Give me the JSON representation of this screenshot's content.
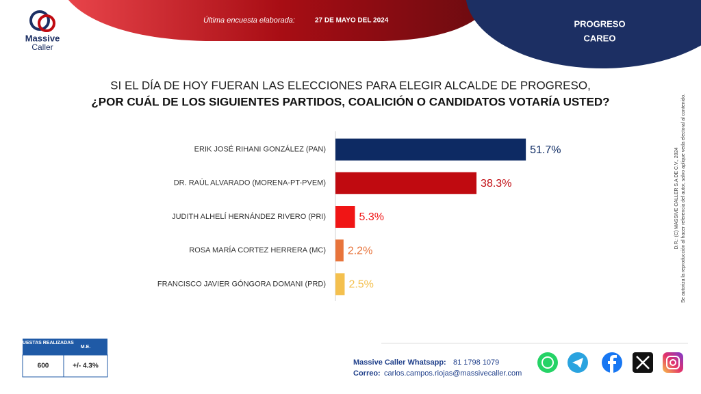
{
  "header": {
    "logo_top": "Massive",
    "logo_bottom": "Caller",
    "survey_label": "Última encuesta elaborada:",
    "survey_date": "27 DE MAYO DEL 2024",
    "place": "PROGRESO",
    "mode": "CAREO"
  },
  "chart_data": {
    "type": "bar",
    "orientation": "horizontal",
    "title": "SI EL DÍA DE HOY FUERAN LAS ELECCIONES PARA ELEGIR ALCALDE DE PROGRESO,",
    "subtitle": "¿POR CUÁL DE LOS SIGUIENTES PARTIDOS, COALICIÓN O CANDIDATOS VOTARÍA USTED?",
    "categories": [
      "ERIK JOSÉ RIHANI GONZÁLEZ (PAN)",
      "DR. RAÚL ALVARADO (MORENA-PT-PVEM)",
      "JUDITH ALHELÍ HERNÁNDEZ RIVERO (PRI)",
      "ROSA MARÍA CORTEZ HERRERA (MC)",
      "FRANCISCO JAVIER GÓNGORA DOMANI (PRD)"
    ],
    "values": [
      51.7,
      38.3,
      5.3,
      2.2,
      2.5
    ],
    "value_labels": [
      "51.7%",
      "38.3%",
      "5.3%",
      "2.2%",
      "2.5%"
    ],
    "colors": [
      "#0d2a63",
      "#c00a10",
      "#f01515",
      "#e8743b",
      "#f4c04e"
    ]
  },
  "side_note": {
    "line1": "D.R.: (C) MASSIVE CALLER S.A DE C.V., 2024",
    "line2": "Se autoriza la reproducción al hacer referencia del autor, salvo aplique veda electoral al contenido."
  },
  "table": {
    "headers": [
      "ENCUESTAS REALIZADAS",
      "M.E."
    ],
    "rows": [
      [
        600,
        "+/- 4.3%"
      ]
    ]
  },
  "footer": {
    "whatsapp_label": "Massive Caller Whatsapp:",
    "whatsapp": "81 1798 1079",
    "email_label": "Correo:",
    "email": "carlos.campos.riojas@massivecaller.com"
  }
}
